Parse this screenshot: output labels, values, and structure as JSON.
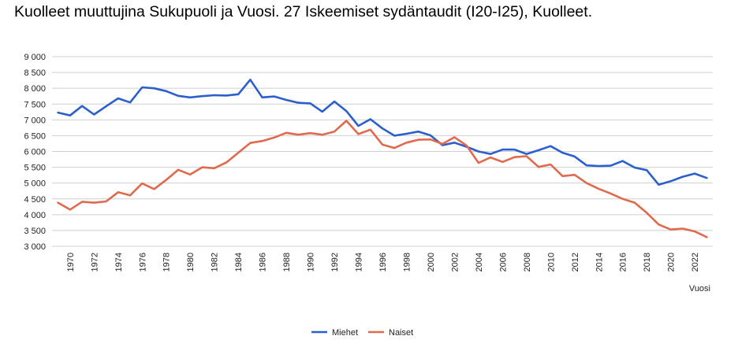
{
  "chart_data": {
    "type": "line",
    "title": "Kuolleet muuttujina Sukupuoli ja Vuosi. 27 Iskeemiset sydäntaudit (I20-I25), Kuolleet.",
    "xlabel": "Vuosi",
    "ylabel": "",
    "ylim": [
      3000,
      9000
    ],
    "y_ticks": [
      3000,
      3500,
      4000,
      4500,
      5000,
      5500,
      6000,
      6500,
      7000,
      7500,
      8000,
      8500,
      9000
    ],
    "y_tick_labels": [
      "3 000",
      "3 500",
      "4 000",
      "4 500",
      "5 000",
      "5 500",
      "6 000",
      "6 500",
      "7 000",
      "7 500",
      "8 000",
      "8 500",
      "9 000"
    ],
    "x_tick_labels": [
      "1970",
      "1972",
      "1974",
      "1976",
      "1978",
      "1980",
      "1982",
      "1984",
      "1986",
      "1988",
      "1990",
      "1992",
      "1994",
      "1996",
      "1998",
      "2000",
      "2002",
      "2004",
      "2006",
      "2008",
      "2010",
      "2012",
      "2014",
      "2016",
      "2018",
      "2020",
      "2022"
    ],
    "grid": true,
    "legend_position": "bottom",
    "x": [
      1969,
      1970,
      1971,
      1972,
      1973,
      1974,
      1975,
      1976,
      1977,
      1978,
      1979,
      1980,
      1981,
      1982,
      1983,
      1984,
      1985,
      1986,
      1987,
      1988,
      1989,
      1990,
      1991,
      1992,
      1993,
      1994,
      1995,
      1996,
      1997,
      1998,
      1999,
      2000,
      2001,
      2002,
      2003,
      2004,
      2005,
      2006,
      2007,
      2008,
      2009,
      2010,
      2011,
      2012,
      2013,
      2014,
      2015,
      2016,
      2017,
      2018,
      2019,
      2020,
      2021,
      2022,
      2023
    ],
    "series": [
      {
        "name": "Miehet",
        "color": "#2b5fcc",
        "values": [
          7230,
          7140,
          7440,
          7170,
          7430,
          7680,
          7550,
          8030,
          8000,
          7910,
          7760,
          7710,
          7750,
          7780,
          7770,
          7810,
          8270,
          7710,
          7740,
          7630,
          7540,
          7520,
          7260,
          7580,
          7280,
          6810,
          7020,
          6730,
          6500,
          6560,
          6630,
          6510,
          6200,
          6280,
          6150,
          6000,
          5920,
          6060,
          6060,
          5920,
          6040,
          6170,
          5960,
          5840,
          5560,
          5540,
          5550,
          5700,
          5490,
          5410,
          4950,
          5060,
          5200,
          5300,
          5160
        ]
      },
      {
        "name": "Naiset",
        "color": "#e06a4e",
        "values": [
          4380,
          4160,
          4410,
          4380,
          4420,
          4710,
          4610,
          4990,
          4810,
          5100,
          5420,
          5270,
          5500,
          5470,
          5650,
          5960,
          6270,
          6330,
          6440,
          6590,
          6530,
          6580,
          6530,
          6630,
          6970,
          6550,
          6690,
          6220,
          6110,
          6280,
          6370,
          6380,
          6240,
          6450,
          6190,
          5640,
          5810,
          5670,
          5820,
          5850,
          5510,
          5590,
          5220,
          5260,
          5000,
          4820,
          4670,
          4500,
          4380,
          4060,
          3690,
          3530,
          3560,
          3470,
          3290
        ]
      }
    ]
  }
}
